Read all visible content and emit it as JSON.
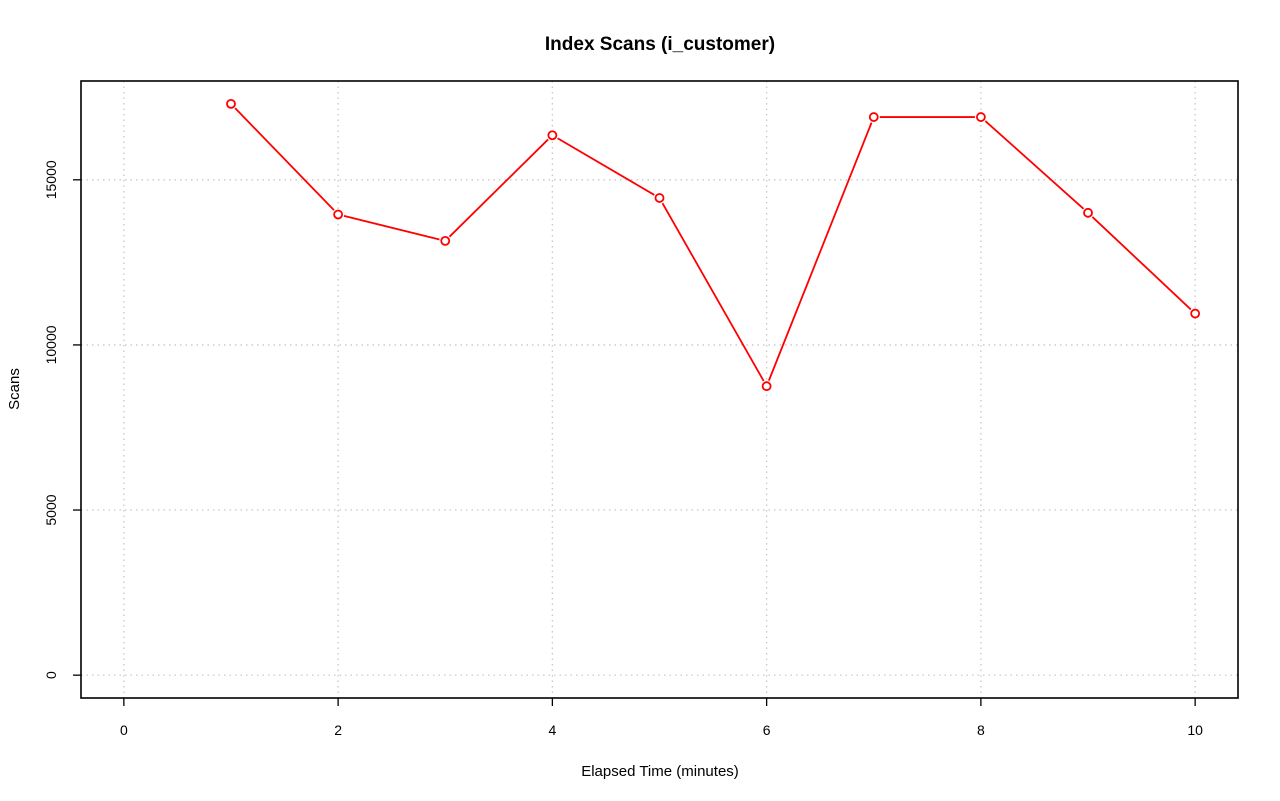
{
  "chart_data": {
    "type": "line",
    "title": "Index Scans (i_customer)",
    "xlabel": "Elapsed Time (minutes)",
    "ylabel": "Scans",
    "xlim": [
      0,
      10
    ],
    "ylim": [
      0,
      17300
    ],
    "xticks": [
      0,
      2,
      4,
      6,
      8,
      10
    ],
    "yticks": [
      0,
      5000,
      10000,
      15000
    ],
    "grid": true,
    "series": [
      {
        "color": "#ff0000",
        "marker": "open-circle",
        "x": [
          1,
          2,
          3,
          4,
          5,
          6,
          7,
          8,
          9,
          10
        ],
        "y": [
          17300,
          13950,
          13150,
          16350,
          14450,
          8750,
          16900,
          16900,
          14000,
          10950
        ]
      }
    ]
  }
}
